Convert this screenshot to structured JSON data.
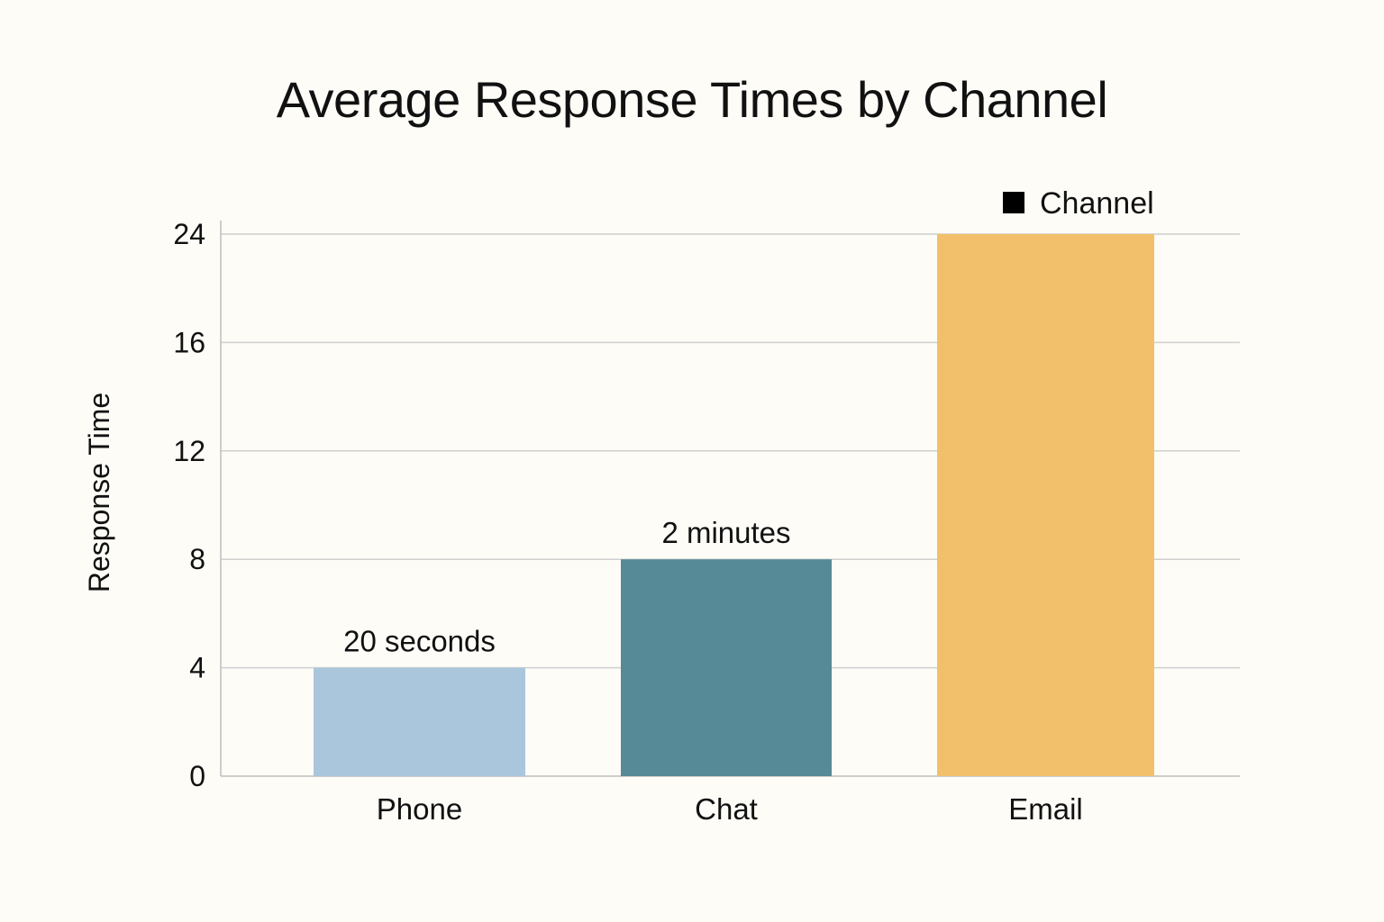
{
  "chart_data": {
    "type": "bar",
    "title": "Average Response Times by Channel",
    "xlabel": "",
    "ylabel": "Response Time",
    "categories": [
      "Phone",
      "Chat",
      "Email"
    ],
    "series": [
      {
        "name": "Channel",
        "values": [
          4,
          8,
          24
        ],
        "data_labels": [
          "20 seconds",
          "2 minutes",
          ""
        ]
      }
    ],
    "bar_colors": [
      "#aac6dc",
      "#558a96",
      "#f2c06a"
    ],
    "y_ticks": [
      0,
      4,
      8,
      12,
      16,
      24
    ],
    "ylim": [
      0,
      24
    ],
    "grid": true,
    "legend": {
      "position": "top-right",
      "entries": [
        "Channel"
      ],
      "color": "#000000"
    }
  }
}
